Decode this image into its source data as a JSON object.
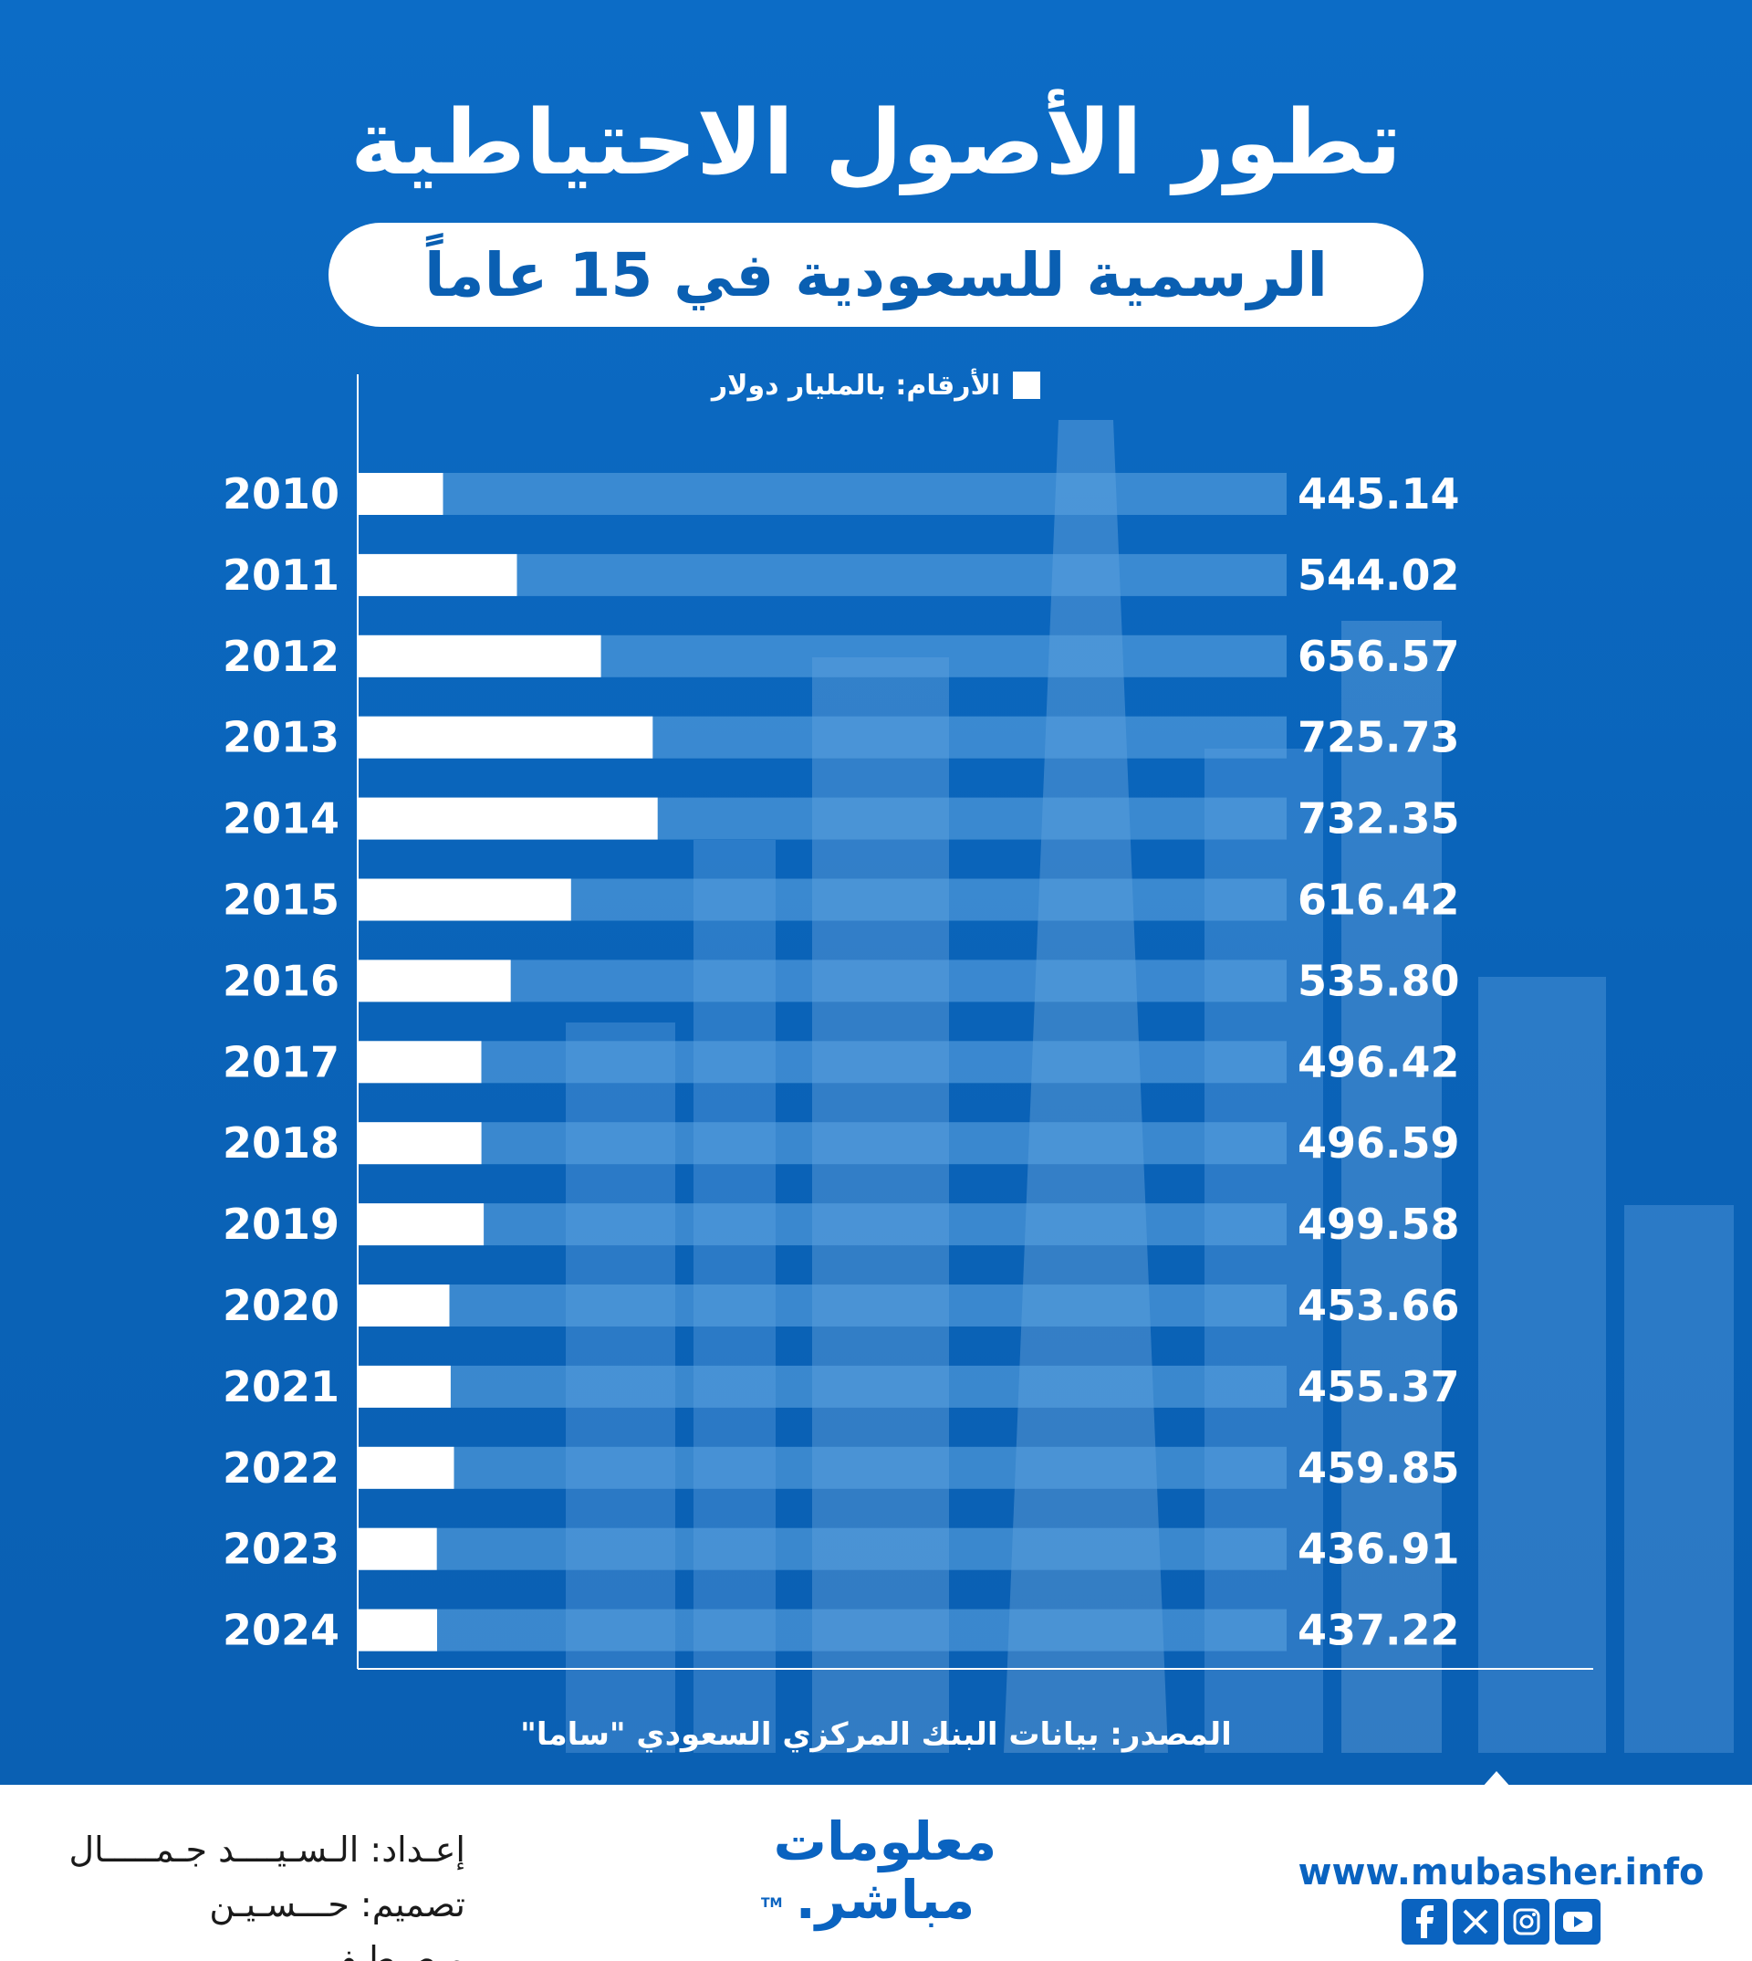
{
  "header": {
    "title": "تطور الأصول الاحتياطية",
    "subtitle": "الرسمية للسعودية في 15 عاماً"
  },
  "legend": {
    "label": "الأرقام: بالمليار دولار"
  },
  "chart_data": {
    "type": "bar",
    "orientation": "horizontal",
    "unit": "الأرقام: بالمليار دولار",
    "categories": [
      "2010",
      "2011",
      "2012",
      "2013",
      "2014",
      "2015",
      "2016",
      "2017",
      "2018",
      "2019",
      "2020",
      "2021",
      "2022",
      "2023",
      "2024"
    ],
    "values": [
      445.14,
      544.02,
      656.57,
      725.73,
      732.35,
      616.42,
      535.8,
      496.42,
      496.59,
      499.58,
      453.66,
      455.37,
      459.85,
      436.91,
      437.22
    ],
    "value_labels": [
      "445.14",
      "544.02",
      "656.57",
      "725.73",
      "732.35",
      "616.42",
      "535.80",
      "496.42",
      "496.59",
      "499.58",
      "453.66",
      "455.37",
      "459.85",
      "436.91",
      "437.22"
    ],
    "bar_color": "#ffffff",
    "track_color": "#5aa2e0",
    "grid": false
  },
  "footer": {
    "source": "المصدر: بيانات البنك المركزي السعودي \"ساما\"",
    "credit_prep": "إعـداد: الـسـيــــد جـمـــــال",
    "credit_design": "تصميم: حـــسـيـن مـصـطـفـى",
    "logo_line1": "معلومات",
    "logo_line2": "مباشر.",
    "logo_tm": "TM",
    "website": "www.mubasher.info",
    "social_icons": [
      "facebook-icon",
      "x-icon",
      "instagram-icon",
      "youtube-icon"
    ]
  },
  "colors": {
    "background": "#0a63b8",
    "accent": "#0a63c0",
    "bar": "#ffffff"
  }
}
